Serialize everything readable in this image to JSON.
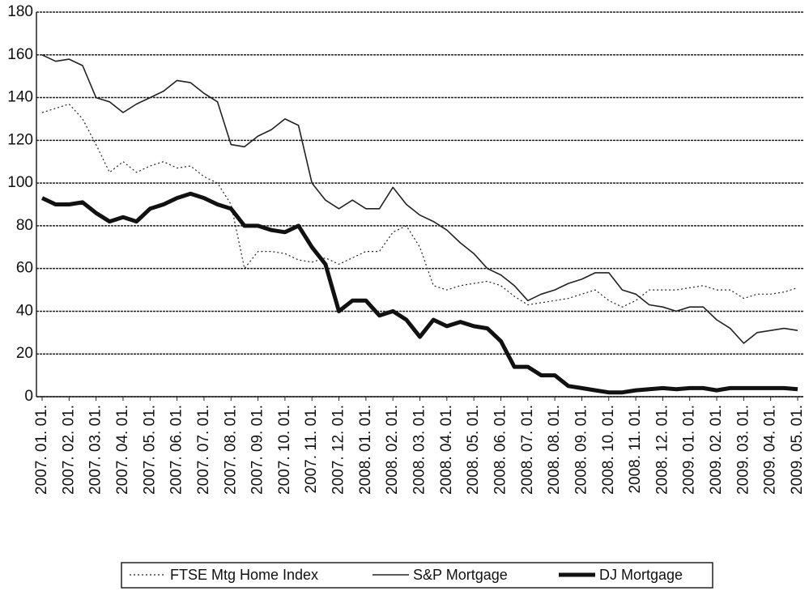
{
  "chart_data": {
    "type": "line",
    "categories": [
      "2007. 01. 01.",
      null,
      "2007. 02. 01.",
      null,
      "2007. 03. 01.",
      null,
      "2007. 04. 01.",
      null,
      "2007. 05. 01.",
      null,
      "2007. 06. 01.",
      null,
      "2007. 07. 01.",
      null,
      "2007. 08. 01.",
      null,
      "2007. 09. 01.",
      null,
      "2007. 10. 01.",
      null,
      "2007. 11. 01.",
      null,
      "2007. 12. 01.",
      null,
      "2008. 01. 01.",
      null,
      "2008. 02. 01.",
      null,
      "2008. 03. 01.",
      null,
      "2008. 04. 01.",
      null,
      "2008. 05. 01.",
      null,
      "2008. 06. 01.",
      null,
      "2008. 07. 01.",
      null,
      "2008. 08. 01.",
      null,
      "2008. 09. 01.",
      null,
      "2008. 10. 01.",
      null,
      "2008. 11. 01.",
      null,
      "2008. 12. 01.",
      null,
      "2009. 01. 01.",
      null,
      "2009. 02. 01.",
      null,
      "2009. 03. 01.",
      null,
      "2009. 04. 01.",
      null,
      "2009. 05. 01."
    ],
    "series": [
      {
        "name": "FTSE Mtg Home Index",
        "color": "#222222",
        "width": 1.2,
        "dash": "dotted",
        "values": [
          133,
          135,
          137,
          130,
          118,
          105,
          110,
          105,
          108,
          110,
          107,
          108,
          103,
          100,
          90,
          60,
          68,
          68,
          67,
          64,
          63,
          65,
          62,
          65,
          68,
          68,
          77,
          80,
          70,
          52,
          50,
          52,
          53,
          54,
          52,
          47,
          43,
          44,
          45,
          46,
          48,
          50,
          45,
          42,
          45,
          50,
          50,
          50,
          51,
          52,
          50,
          50,
          46,
          48,
          48,
          49,
          51
        ]
      },
      {
        "name": "S&P Mortgage",
        "color": "#222222",
        "width": 1.6,
        "dash": "solid",
        "values": [
          160,
          157,
          158,
          155,
          140,
          138,
          133,
          137,
          140,
          143,
          148,
          147,
          142,
          138,
          118,
          117,
          122,
          125,
          130,
          127,
          100,
          92,
          88,
          92,
          88,
          88,
          98,
          90,
          85,
          82,
          78,
          72,
          67,
          60,
          57,
          52,
          45,
          48,
          50,
          53,
          55,
          58,
          58,
          50,
          48,
          43,
          42,
          40,
          42,
          42,
          36,
          32,
          25,
          30,
          31,
          32,
          31
        ]
      },
      {
        "name": "DJ Mortgage",
        "color": "#111111",
        "width": 5,
        "dash": "solid",
        "values": [
          93,
          90,
          90,
          91,
          86,
          82,
          84,
          82,
          88,
          90,
          93,
          95,
          93,
          90,
          88,
          80,
          80,
          78,
          77,
          80,
          70,
          62,
          40,
          45,
          45,
          38,
          40,
          36,
          28,
          36,
          33,
          35,
          33,
          32,
          26,
          14,
          14,
          10,
          10,
          5,
          4,
          3,
          2,
          2,
          3,
          3.5,
          4,
          3.5,
          4,
          4,
          3,
          4,
          4,
          4,
          4,
          4,
          3.5
        ]
      }
    ],
    "ylim": [
      0,
      180
    ],
    "yticks": [
      0,
      20,
      40,
      60,
      80,
      100,
      120,
      140,
      160,
      180
    ],
    "grid": true,
    "legend": "bottom"
  }
}
